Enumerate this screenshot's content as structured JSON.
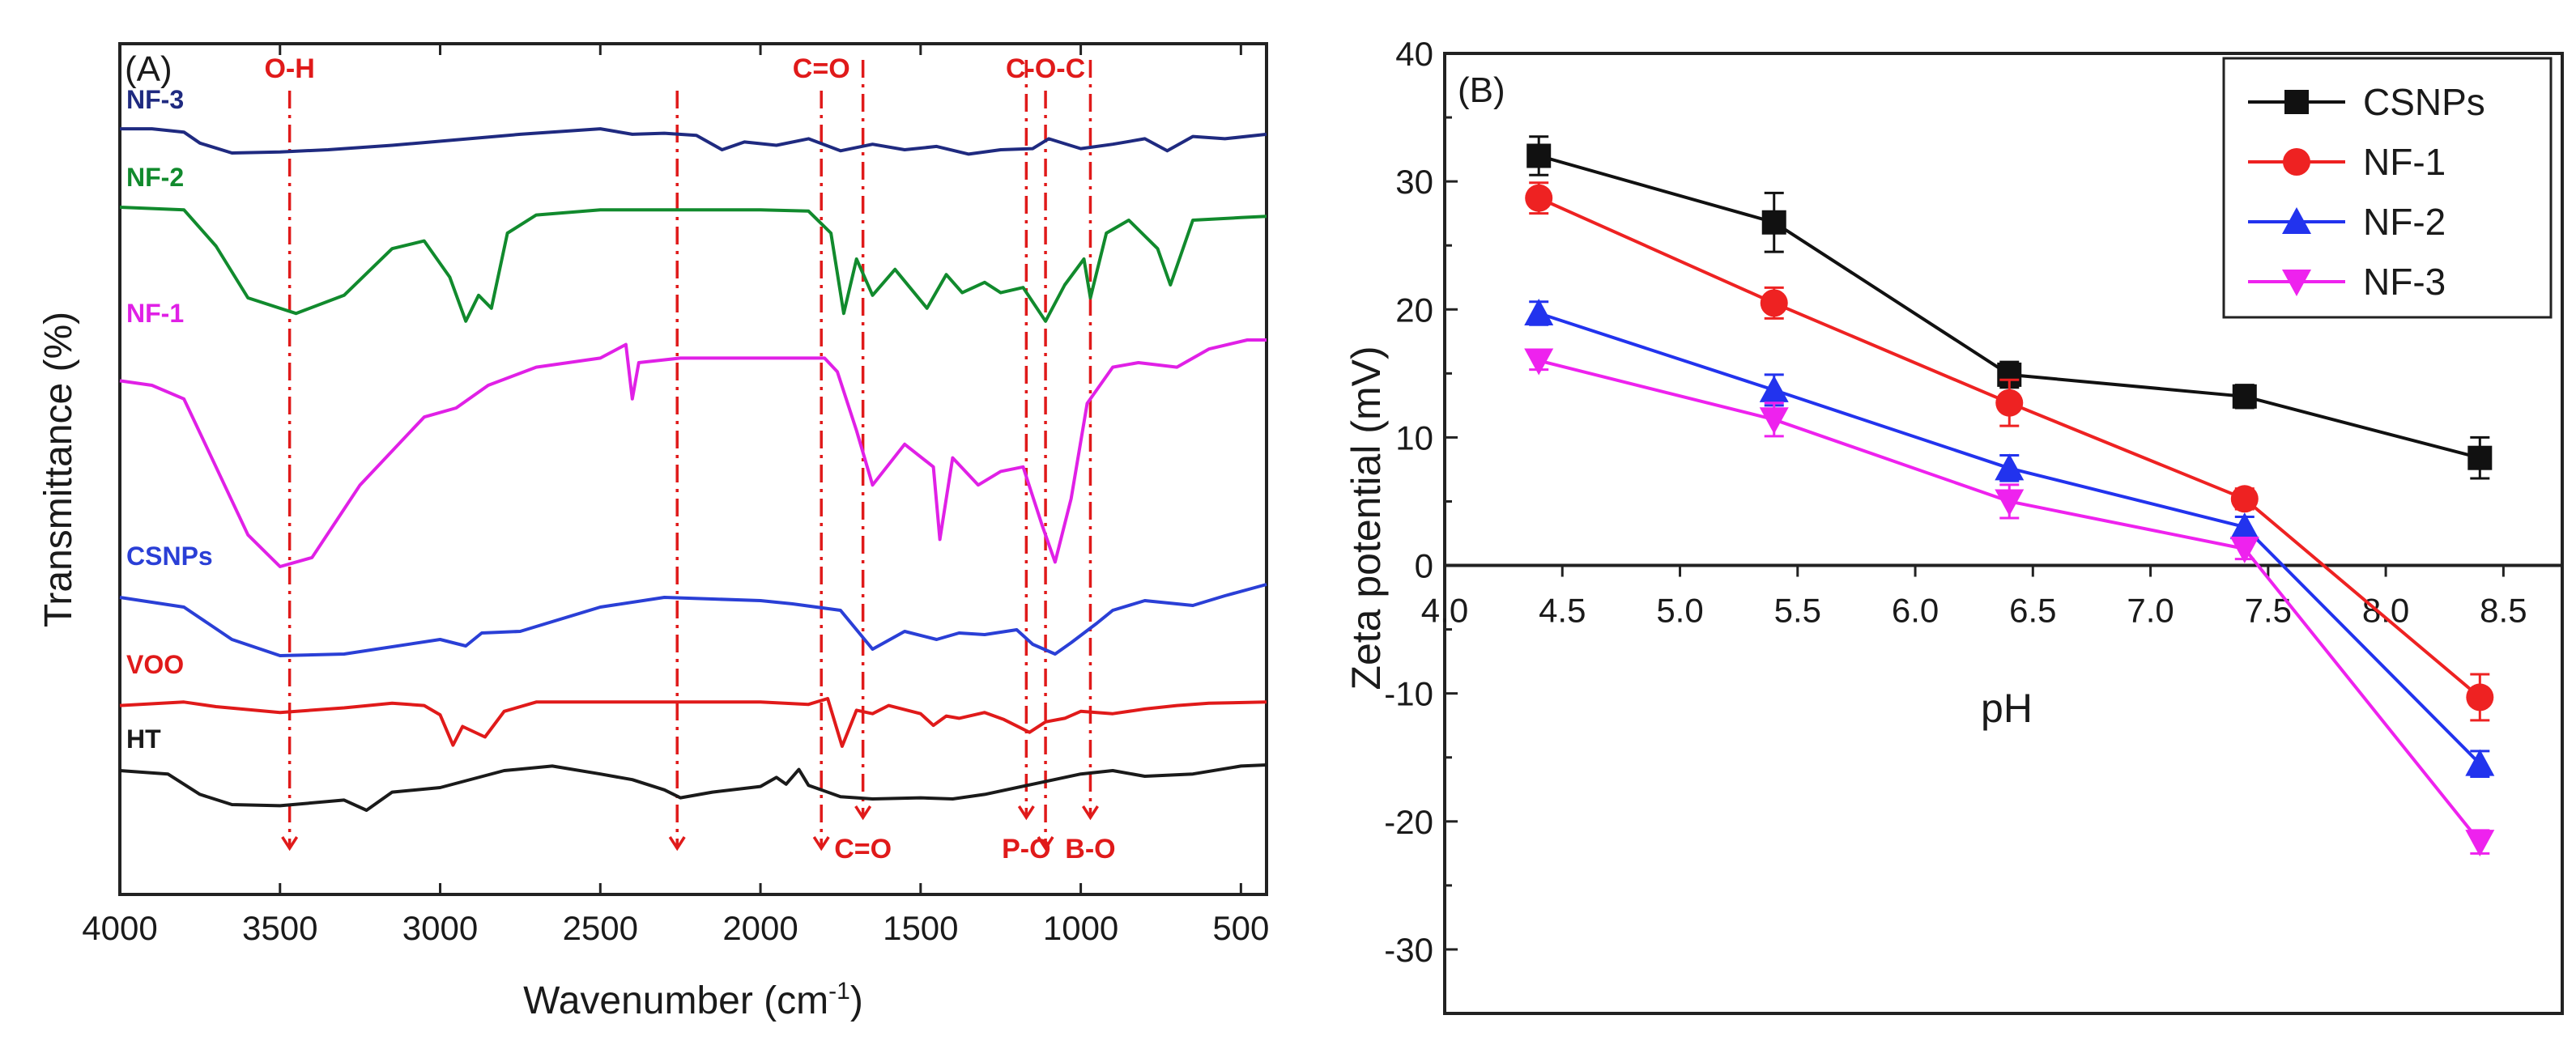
{
  "chart_data": [
    {
      "type": "line",
      "panel_label": "(A)",
      "title": "",
      "xlabel_main": "Wavenumber (cm",
      "xlabel_sup": "-1",
      "xlabel_tail": ")",
      "ylabel": "Transmittance (%)",
      "xlim": [
        4000,
        420
      ],
      "xticks": [
        4000,
        3500,
        3000,
        2500,
        2000,
        1500,
        1000,
        500
      ],
      "xtick_labels": [
        "4000",
        "3500",
        "3000",
        "2500",
        "2000",
        "1500",
        "1000",
        "500"
      ],
      "y_ticks_shown": false,
      "series": [
        {
          "name": "NF-3",
          "color": "#1f2a80",
          "points": [
            [
              4000,
              0.34
            ],
            [
              3900,
              0.34
            ],
            [
              3800,
              0.4
            ],
            [
              3750,
              0.6
            ],
            [
              3650,
              0.78
            ],
            [
              3500,
              0.76
            ],
            [
              3350,
              0.72
            ],
            [
              3150,
              0.64
            ],
            [
              2950,
              0.54
            ],
            [
              2750,
              0.44
            ],
            [
              2500,
              0.34
            ],
            [
              2400,
              0.44
            ],
            [
              2300,
              0.42
            ],
            [
              2200,
              0.46
            ],
            [
              2120,
              0.72
            ],
            [
              2050,
              0.58
            ],
            [
              1950,
              0.64
            ],
            [
              1850,
              0.52
            ],
            [
              1750,
              0.74
            ],
            [
              1650,
              0.62
            ],
            [
              1550,
              0.72
            ],
            [
              1450,
              0.66
            ],
            [
              1350,
              0.8
            ],
            [
              1250,
              0.72
            ],
            [
              1150,
              0.7
            ],
            [
              1100,
              0.52
            ],
            [
              1000,
              0.7
            ],
            [
              900,
              0.62
            ],
            [
              800,
              0.52
            ],
            [
              730,
              0.74
            ],
            [
              650,
              0.48
            ],
            [
              550,
              0.52
            ],
            [
              420,
              0.44
            ]
          ]
        },
        {
          "name": "NF-2",
          "color": "#118a2d",
          "points": [
            [
              4000,
              0.1
            ],
            [
              3800,
              0.12
            ],
            [
              3700,
              0.4
            ],
            [
              3600,
              0.8
            ],
            [
              3450,
              0.92
            ],
            [
              3300,
              0.78
            ],
            [
              3150,
              0.42
            ],
            [
              3050,
              0.36
            ],
            [
              2970,
              0.64
            ],
            [
              2920,
              0.98
            ],
            [
              2880,
              0.78
            ],
            [
              2840,
              0.88
            ],
            [
              2790,
              0.3
            ],
            [
              2700,
              0.16
            ],
            [
              2500,
              0.12
            ],
            [
              2000,
              0.12
            ],
            [
              1850,
              0.13
            ],
            [
              1780,
              0.3
            ],
            [
              1740,
              0.92
            ],
            [
              1700,
              0.5
            ],
            [
              1650,
              0.78
            ],
            [
              1580,
              0.58
            ],
            [
              1480,
              0.88
            ],
            [
              1420,
              0.62
            ],
            [
              1370,
              0.76
            ],
            [
              1300,
              0.68
            ],
            [
              1250,
              0.76
            ],
            [
              1180,
              0.72
            ],
            [
              1110,
              0.98
            ],
            [
              1050,
              0.7
            ],
            [
              990,
              0.5
            ],
            [
              970,
              0.8
            ],
            [
              920,
              0.3
            ],
            [
              850,
              0.2
            ],
            [
              760,
              0.42
            ],
            [
              720,
              0.7
            ],
            [
              650,
              0.2
            ],
            [
              500,
              0.18
            ],
            [
              420,
              0.17
            ]
          ]
        },
        {
          "name": "NF-1",
          "color": "#e020e6",
          "points": [
            [
              4000,
              0.18
            ],
            [
              3900,
              0.2
            ],
            [
              3800,
              0.26
            ],
            [
              3700,
              0.56
            ],
            [
              3600,
              0.86
            ],
            [
              3500,
              1.0
            ],
            [
              3400,
              0.96
            ],
            [
              3250,
              0.64
            ],
            [
              3050,
              0.34
            ],
            [
              2950,
              0.3
            ],
            [
              2850,
              0.2
            ],
            [
              2700,
              0.12
            ],
            [
              2500,
              0.08
            ],
            [
              2420,
              0.02
            ],
            [
              2400,
              0.26
            ],
            [
              2380,
              0.1
            ],
            [
              2250,
              0.08
            ],
            [
              1800,
              0.08
            ],
            [
              1760,
              0.14
            ],
            [
              1700,
              0.4
            ],
            [
              1650,
              0.64
            ],
            [
              1550,
              0.46
            ],
            [
              1460,
              0.56
            ],
            [
              1440,
              0.88
            ],
            [
              1400,
              0.52
            ],
            [
              1320,
              0.64
            ],
            [
              1250,
              0.58
            ],
            [
              1180,
              0.56
            ],
            [
              1120,
              0.82
            ],
            [
              1080,
              0.98
            ],
            [
              1030,
              0.7
            ],
            [
              980,
              0.28
            ],
            [
              900,
              0.12
            ],
            [
              820,
              0.1
            ],
            [
              700,
              0.12
            ],
            [
              600,
              0.04
            ],
            [
              480,
              0.0
            ],
            [
              420,
              0.0
            ]
          ]
        },
        {
          "name": "CSNPs",
          "color": "#2a3fd6",
          "points": [
            [
              4000,
              0.18
            ],
            [
              3800,
              0.3
            ],
            [
              3650,
              0.7
            ],
            [
              3500,
              0.9
            ],
            [
              3300,
              0.88
            ],
            [
              3000,
              0.7
            ],
            [
              2920,
              0.78
            ],
            [
              2870,
              0.62
            ],
            [
              2750,
              0.6
            ],
            [
              2500,
              0.3
            ],
            [
              2300,
              0.18
            ],
            [
              2150,
              0.2
            ],
            [
              2000,
              0.22
            ],
            [
              1900,
              0.26
            ],
            [
              1750,
              0.34
            ],
            [
              1650,
              0.82
            ],
            [
              1550,
              0.6
            ],
            [
              1450,
              0.7
            ],
            [
              1380,
              0.62
            ],
            [
              1300,
              0.64
            ],
            [
              1200,
              0.58
            ],
            [
              1150,
              0.76
            ],
            [
              1080,
              0.88
            ],
            [
              1030,
              0.74
            ],
            [
              950,
              0.5
            ],
            [
              900,
              0.34
            ],
            [
              800,
              0.22
            ],
            [
              650,
              0.28
            ],
            [
              550,
              0.16
            ],
            [
              420,
              0.02
            ]
          ]
        },
        {
          "name": "VOO",
          "color": "#e01a1a",
          "points": [
            [
              4000,
              0.3
            ],
            [
              3800,
              0.24
            ],
            [
              3700,
              0.32
            ],
            [
              3500,
              0.42
            ],
            [
              3300,
              0.34
            ],
            [
              3150,
              0.26
            ],
            [
              3050,
              0.3
            ],
            [
              3000,
              0.46
            ],
            [
              2960,
              0.98
            ],
            [
              2930,
              0.66
            ],
            [
              2860,
              0.84
            ],
            [
              2800,
              0.4
            ],
            [
              2700,
              0.24
            ],
            [
              2000,
              0.24
            ],
            [
              1850,
              0.28
            ],
            [
              1790,
              0.18
            ],
            [
              1745,
              1.0
            ],
            [
              1700,
              0.38
            ],
            [
              1650,
              0.44
            ],
            [
              1600,
              0.3
            ],
            [
              1500,
              0.44
            ],
            [
              1460,
              0.64
            ],
            [
              1420,
              0.48
            ],
            [
              1380,
              0.52
            ],
            [
              1300,
              0.42
            ],
            [
              1240,
              0.54
            ],
            [
              1160,
              0.76
            ],
            [
              1110,
              0.58
            ],
            [
              1050,
              0.52
            ],
            [
              1000,
              0.4
            ],
            [
              900,
              0.44
            ],
            [
              800,
              0.36
            ],
            [
              700,
              0.3
            ],
            [
              600,
              0.26
            ],
            [
              420,
              0.24
            ]
          ]
        },
        {
          "name": "HT",
          "color": "#1a1a1a",
          "points": [
            [
              4000,
              0.1
            ],
            [
              3850,
              0.16
            ],
            [
              3750,
              0.52
            ],
            [
              3650,
              0.7
            ],
            [
              3500,
              0.72
            ],
            [
              3300,
              0.62
            ],
            [
              3230,
              0.8
            ],
            [
              3150,
              0.48
            ],
            [
              3000,
              0.4
            ],
            [
              2800,
              0.1
            ],
            [
              2650,
              0.02
            ],
            [
              2500,
              0.16
            ],
            [
              2400,
              0.26
            ],
            [
              2300,
              0.44
            ],
            [
              2250,
              0.58
            ],
            [
              2150,
              0.48
            ],
            [
              2000,
              0.38
            ],
            [
              1950,
              0.22
            ],
            [
              1920,
              0.34
            ],
            [
              1880,
              0.08
            ],
            [
              1850,
              0.36
            ],
            [
              1750,
              0.56
            ],
            [
              1650,
              0.6
            ],
            [
              1500,
              0.58
            ],
            [
              1400,
              0.6
            ],
            [
              1300,
              0.52
            ],
            [
              1150,
              0.34
            ],
            [
              1000,
              0.16
            ],
            [
              900,
              0.1
            ],
            [
              800,
              0.2
            ],
            [
              650,
              0.16
            ],
            [
              500,
              0.02
            ],
            [
              420,
              0.0
            ]
          ]
        }
      ],
      "annotations": [
        {
          "text": "O-H",
          "x": 3470,
          "pos": "top"
        },
        {
          "text": "",
          "x": 2260,
          "pos": "top"
        },
        {
          "text": "C=O",
          "x": 1810,
          "pos": "top"
        },
        {
          "text": "C=O",
          "x": 1680,
          "pos": "bottom"
        },
        {
          "text": "P-O",
          "x": 1170,
          "pos": "bottom"
        },
        {
          "text": "C-O-C",
          "x": 1110,
          "pos": "top"
        },
        {
          "text": "B-O",
          "x": 970,
          "pos": "bottom"
        }
      ]
    },
    {
      "type": "line",
      "panel_label": "(B)",
      "title": "",
      "xlabel": "pH",
      "ylabel": "Zeta potential (mV)",
      "xlim": [
        4.0,
        8.75
      ],
      "ylim": [
        -35,
        40
      ],
      "xticks": [
        4.0,
        4.5,
        5.0,
        5.5,
        6.0,
        6.5,
        7.0,
        7.5,
        8.0,
        8.5
      ],
      "xtick_labels": [
        "4.0",
        "4.5",
        "5.0",
        "5.5",
        "6.0",
        "6.5",
        "7.0",
        "7.5",
        "8.0",
        "8.5"
      ],
      "yticks": [
        -30,
        -20,
        -10,
        0,
        10,
        20,
        30,
        40
      ],
      "ytick_labels": [
        "-30",
        "-20",
        "-10",
        "0",
        "10",
        "20",
        "30",
        "40"
      ],
      "x": [
        4.4,
        5.4,
        6.4,
        7.4,
        8.4
      ],
      "legend_position": "top-right",
      "series": [
        {
          "name": "CSNPs",
          "color": "#111111",
          "marker": "square",
          "values": [
            32.0,
            26.8,
            14.9,
            13.2,
            8.4
          ],
          "errors": [
            1.5,
            2.3,
            1.0,
            0.9,
            1.6
          ]
        },
        {
          "name": "NF-1",
          "color": "#ee2222",
          "marker": "circle",
          "values": [
            28.7,
            20.5,
            12.7,
            5.2,
            -10.3
          ],
          "errors": [
            1.2,
            1.2,
            1.8,
            0.8,
            1.8
          ]
        },
        {
          "name": "NF-2",
          "color": "#2233ee",
          "marker": "triangle-up",
          "values": [
            19.7,
            13.7,
            7.6,
            3.0,
            -15.5
          ],
          "errors": [
            0.9,
            1.2,
            1.0,
            0.8,
            1.0
          ]
        },
        {
          "name": "NF-3",
          "color": "#ee22ee",
          "marker": "triangle-down",
          "values": [
            16.0,
            11.4,
            5.0,
            1.3,
            -21.6
          ],
          "errors": [
            0.7,
            1.3,
            1.3,
            0.8,
            0.9
          ]
        }
      ]
    }
  ]
}
